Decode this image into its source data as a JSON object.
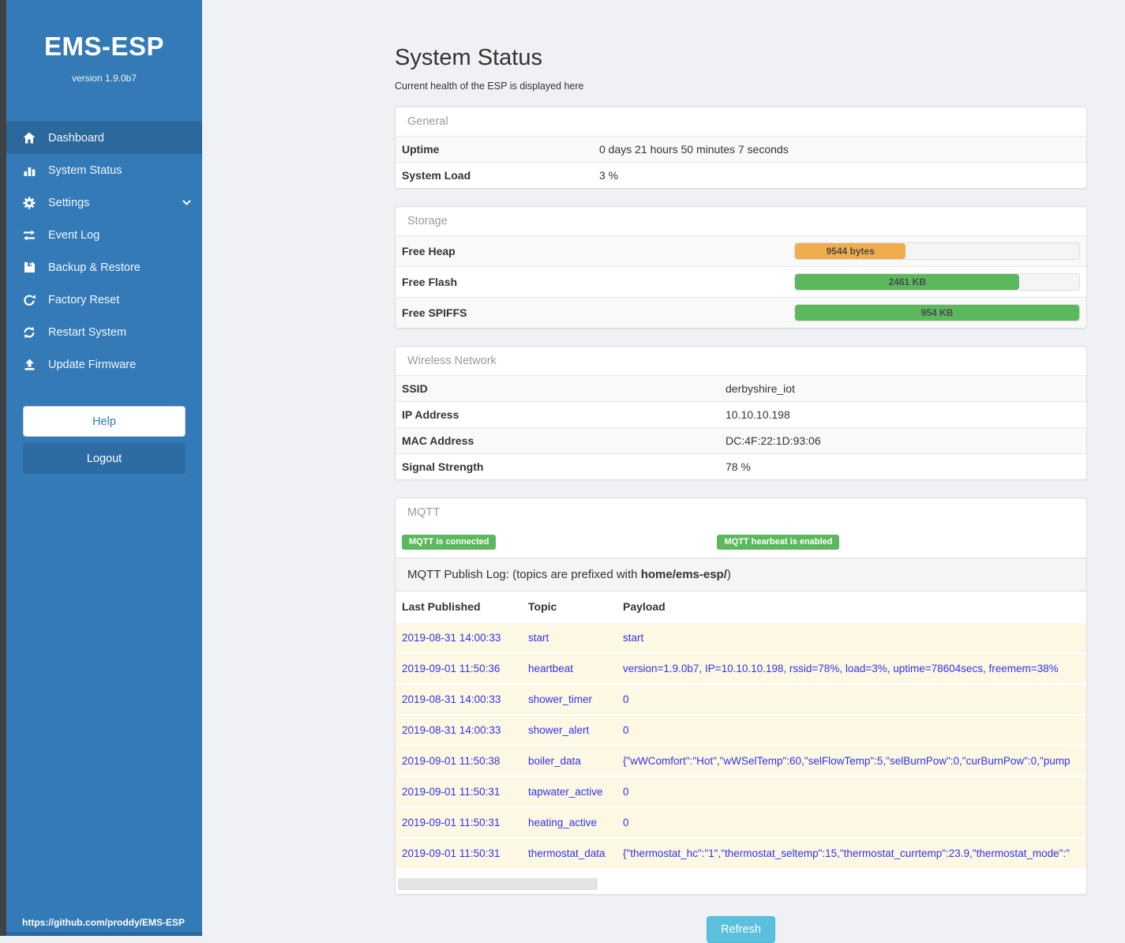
{
  "sidebar": {
    "title": "EMS-ESP",
    "version": "version 1.9.0b7",
    "items": [
      {
        "label": "Dashboard",
        "icon": "home-icon",
        "active": true
      },
      {
        "label": "System Status",
        "icon": "status-bars-icon",
        "active": false
      },
      {
        "label": "Settings",
        "icon": "gear-icon",
        "active": false,
        "has_chevron": true
      },
      {
        "label": "Event Log",
        "icon": "transfer-arrows-icon",
        "active": false
      },
      {
        "label": "Backup & Restore",
        "icon": "floppy-icon",
        "active": false
      },
      {
        "label": "Factory Reset",
        "icon": "reset-arrow-icon",
        "active": false
      },
      {
        "label": "Restart System",
        "icon": "sync-arrows-icon",
        "active": false
      },
      {
        "label": "Update Firmware",
        "icon": "upload-icon",
        "active": false
      }
    ],
    "help_label": "Help",
    "logout_label": "Logout",
    "footer_link": "https://github.com/proddy/EMS-ESP"
  },
  "page": {
    "title": "System Status",
    "subtitle": "Current health of the ESP is displayed here",
    "refresh_label": "Refresh"
  },
  "general": {
    "header": "General",
    "rows": [
      {
        "label": "Uptime",
        "value": "0 days 21 hours 50 minutes 7 seconds"
      },
      {
        "label": "System Load",
        "value": "3 %"
      }
    ]
  },
  "storage": {
    "header": "Storage",
    "rows": [
      {
        "label": "Free Heap",
        "value": "9544 bytes",
        "percent": 39,
        "color": "#f0ad4e"
      },
      {
        "label": "Free Flash",
        "value": "2461 KB",
        "percent": 79,
        "color": "#5cb85c"
      },
      {
        "label": "Free SPIFFS",
        "value": "954 KB",
        "percent": 100,
        "color": "#5cb85c"
      }
    ]
  },
  "wireless": {
    "header": "Wireless Network",
    "rows": [
      {
        "label": "SSID",
        "value": "derbyshire_iot"
      },
      {
        "label": "IP Address",
        "value": "10.10.10.198"
      },
      {
        "label": "MAC Address",
        "value": "DC:4F:22:1D:93:06"
      },
      {
        "label": "Signal Strength",
        "value": "78 %"
      }
    ]
  },
  "mqtt": {
    "header": "MQTT",
    "badges": [
      {
        "label": "MQTT is connected",
        "color": "#5cb85c"
      },
      {
        "label": "MQTT hearbeat is enabled",
        "color": "#5cb85c"
      }
    ],
    "log_title_prefix": "MQTT Publish Log: (topics are prefixed with ",
    "log_title_bold": "home/ems-esp/",
    "log_title_suffix": ")",
    "columns": [
      "Last Published",
      "Topic",
      "Payload"
    ],
    "rows": [
      {
        "time": "2019-08-31 14:00:33",
        "topic": "start",
        "payload": "start"
      },
      {
        "time": "2019-09-01 11:50:36",
        "topic": "heartbeat",
        "payload": "version=1.9.0b7, IP=10.10.10.198, rssid=78%, load=3%, uptime=78604secs, freemem=38%"
      },
      {
        "time": "2019-08-31 14:00:33",
        "topic": "shower_timer",
        "payload": "0"
      },
      {
        "time": "2019-08-31 14:00:33",
        "topic": "shower_alert",
        "payload": "0"
      },
      {
        "time": "2019-09-01 11:50:38",
        "topic": "boiler_data",
        "payload": "{\"wWComfort\":\"Hot\",\"wWSelTemp\":60,\"selFlowTemp\":5,\"selBurnPow\":0,\"curBurnPow\":0,\"pump"
      },
      {
        "time": "2019-09-01 11:50:31",
        "topic": "tapwater_active",
        "payload": "0"
      },
      {
        "time": "2019-09-01 11:50:31",
        "topic": "heating_active",
        "payload": "0"
      },
      {
        "time": "2019-09-01 11:50:31",
        "topic": "thermostat_data",
        "payload": "{\"thermostat_hc\":\"1\",\"thermostat_seltemp\":15,\"thermostat_currtemp\":23.9,\"thermostat_mode\":\""
      }
    ]
  },
  "colors": {
    "sidebar_blue": "#337ab7",
    "sidebar_active": "#2b689c",
    "badge_green": "#5cb85c",
    "bar_orange": "#f0ad4e",
    "bar_green": "#5cb85c",
    "refresh_blue": "#5bc0de",
    "log_link_blue": "#3333ee",
    "log_row_cream": "#fcf8e3"
  }
}
